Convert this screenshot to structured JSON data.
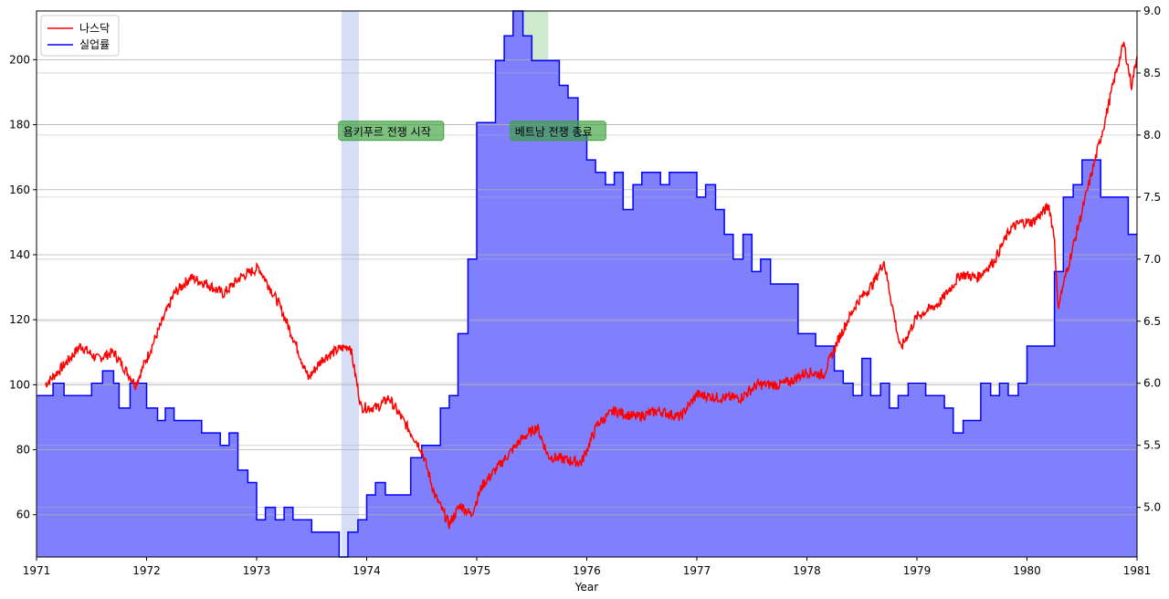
{
  "chart_data": {
    "type": "line",
    "xlabel": "Year",
    "xlim": [
      1971.0,
      1981.0
    ],
    "x_ticks": [
      "1971",
      "1972",
      "1973",
      "1974",
      "1975",
      "1976",
      "1977",
      "1978",
      "1979",
      "1980",
      "1981"
    ],
    "y_left": {
      "range": [
        47,
        215
      ],
      "ticks": [
        "60",
        "80",
        "100",
        "120",
        "140",
        "160",
        "180",
        "200"
      ]
    },
    "y_right": {
      "range": [
        4.6,
        9.0
      ],
      "ticks": [
        "5.0",
        "5.5",
        "6.0",
        "6.5",
        "7.0",
        "7.5",
        "8.0",
        "8.5",
        "9.0"
      ]
    },
    "grid": "horizontal",
    "legend_position": "top-left",
    "series": [
      {
        "name": "나스닥",
        "color": "#ff0000",
        "axis": "left",
        "style": "line",
        "points": [
          [
            1971.08,
            100
          ],
          [
            1971.25,
            106
          ],
          [
            1971.4,
            112
          ],
          [
            1971.55,
            108
          ],
          [
            1971.7,
            110
          ],
          [
            1971.9,
            100
          ],
          [
            1972.05,
            112
          ],
          [
            1972.25,
            128
          ],
          [
            1972.4,
            133
          ],
          [
            1972.55,
            131
          ],
          [
            1972.7,
            128
          ],
          [
            1972.85,
            133
          ],
          [
            1973.02,
            136
          ],
          [
            1973.2,
            125
          ],
          [
            1973.35,
            113
          ],
          [
            1973.47,
            102
          ],
          [
            1973.6,
            108
          ],
          [
            1973.75,
            111
          ],
          [
            1973.85,
            112
          ],
          [
            1973.95,
            93
          ],
          [
            1974.1,
            93
          ],
          [
            1974.2,
            96
          ],
          [
            1974.35,
            88
          ],
          [
            1974.5,
            80
          ],
          [
            1974.62,
            66
          ],
          [
            1974.75,
            57
          ],
          [
            1974.85,
            63
          ],
          [
            1974.95,
            60
          ],
          [
            1975.05,
            69
          ],
          [
            1975.2,
            75
          ],
          [
            1975.4,
            83
          ],
          [
            1975.55,
            87
          ],
          [
            1975.65,
            78
          ],
          [
            1975.8,
            77
          ],
          [
            1975.95,
            76
          ],
          [
            1976.1,
            88
          ],
          [
            1976.25,
            92
          ],
          [
            1976.45,
            90
          ],
          [
            1976.65,
            92
          ],
          [
            1976.85,
            90
          ],
          [
            1977.0,
            97
          ],
          [
            1977.2,
            96
          ],
          [
            1977.4,
            96
          ],
          [
            1977.55,
            100
          ],
          [
            1977.75,
            100
          ],
          [
            1977.85,
            101
          ],
          [
            1978.0,
            104
          ],
          [
            1978.15,
            103
          ],
          [
            1978.3,
            115
          ],
          [
            1978.45,
            125
          ],
          [
            1978.6,
            131
          ],
          [
            1978.7,
            138
          ],
          [
            1978.85,
            111
          ],
          [
            1979.0,
            121
          ],
          [
            1979.2,
            125
          ],
          [
            1979.4,
            134
          ],
          [
            1979.55,
            133
          ],
          [
            1979.7,
            138
          ],
          [
            1979.85,
            148
          ],
          [
            1979.95,
            150
          ],
          [
            1980.05,
            150
          ],
          [
            1980.2,
            155
          ],
          [
            1980.25,
            145
          ],
          [
            1980.28,
            124
          ],
          [
            1980.4,
            140
          ],
          [
            1980.55,
            160
          ],
          [
            1980.7,
            180
          ],
          [
            1980.8,
            195
          ],
          [
            1980.88,
            205
          ],
          [
            1980.95,
            192
          ],
          [
            1981.0,
            201
          ]
        ]
      },
      {
        "name": "실업률",
        "color": "#0000ff",
        "fill": "#8080ff",
        "axis": "right",
        "style": "step",
        "points": [
          [
            1971.0,
            5.9
          ],
          [
            1971.15,
            6.0
          ],
          [
            1971.25,
            5.9
          ],
          [
            1971.5,
            6.0
          ],
          [
            1971.6,
            6.1
          ],
          [
            1971.7,
            6.0
          ],
          [
            1971.75,
            5.8
          ],
          [
            1971.85,
            6.0
          ],
          [
            1972.0,
            5.8
          ],
          [
            1972.1,
            5.7
          ],
          [
            1972.17,
            5.8
          ],
          [
            1972.25,
            5.7
          ],
          [
            1972.5,
            5.6
          ],
          [
            1972.67,
            5.5
          ],
          [
            1972.75,
            5.6
          ],
          [
            1972.83,
            5.3
          ],
          [
            1972.92,
            5.2
          ],
          [
            1973.0,
            4.9
          ],
          [
            1973.08,
            5.0
          ],
          [
            1973.17,
            4.9
          ],
          [
            1973.25,
            5.0
          ],
          [
            1973.33,
            4.9
          ],
          [
            1973.5,
            4.8
          ],
          [
            1973.75,
            4.6
          ],
          [
            1973.83,
            4.8
          ],
          [
            1973.92,
            4.9
          ],
          [
            1974.0,
            5.1
          ],
          [
            1974.08,
            5.2
          ],
          [
            1974.17,
            5.1
          ],
          [
            1974.4,
            5.4
          ],
          [
            1974.5,
            5.5
          ],
          [
            1974.67,
            5.8
          ],
          [
            1974.75,
            5.9
          ],
          [
            1974.83,
            6.4
          ],
          [
            1974.92,
            7.0
          ],
          [
            1975.0,
            8.1
          ],
          [
            1975.17,
            8.6
          ],
          [
            1975.25,
            8.8
          ],
          [
            1975.33,
            9.0
          ],
          [
            1975.42,
            8.8
          ],
          [
            1975.5,
            8.6
          ],
          [
            1975.75,
            8.4
          ],
          [
            1975.83,
            8.3
          ],
          [
            1975.92,
            8.0
          ],
          [
            1976.0,
            7.8
          ],
          [
            1976.08,
            7.7
          ],
          [
            1976.17,
            7.6
          ],
          [
            1976.25,
            7.7
          ],
          [
            1976.33,
            7.4
          ],
          [
            1976.42,
            7.6
          ],
          [
            1976.5,
            7.7
          ],
          [
            1976.67,
            7.6
          ],
          [
            1976.75,
            7.7
          ],
          [
            1977.0,
            7.5
          ],
          [
            1977.08,
            7.6
          ],
          [
            1977.17,
            7.4
          ],
          [
            1977.25,
            7.2
          ],
          [
            1977.33,
            7.0
          ],
          [
            1977.42,
            7.2
          ],
          [
            1977.5,
            6.9
          ],
          [
            1977.58,
            7.0
          ],
          [
            1977.67,
            6.8
          ],
          [
            1977.92,
            6.4
          ],
          [
            1978.08,
            6.3
          ],
          [
            1978.25,
            6.1
          ],
          [
            1978.33,
            6.0
          ],
          [
            1978.42,
            5.9
          ],
          [
            1978.5,
            6.2
          ],
          [
            1978.58,
            5.9
          ],
          [
            1978.67,
            6.0
          ],
          [
            1978.75,
            5.8
          ],
          [
            1978.83,
            5.9
          ],
          [
            1978.92,
            6.0
          ],
          [
            1979.08,
            5.9
          ],
          [
            1979.25,
            5.8
          ],
          [
            1979.33,
            5.6
          ],
          [
            1979.42,
            5.7
          ],
          [
            1979.58,
            6.0
          ],
          [
            1979.67,
            5.9
          ],
          [
            1979.75,
            6.0
          ],
          [
            1979.83,
            5.9
          ],
          [
            1979.92,
            6.0
          ],
          [
            1980.0,
            6.3
          ],
          [
            1980.25,
            6.9
          ],
          [
            1980.33,
            7.5
          ],
          [
            1980.42,
            7.6
          ],
          [
            1980.5,
            7.8
          ],
          [
            1980.67,
            7.5
          ],
          [
            1980.92,
            7.2
          ],
          [
            1981.0,
            7.2
          ]
        ]
      }
    ],
    "shaded_spans": [
      {
        "x_start": 1973.77,
        "x_end": 1973.93,
        "color": "#aebfee",
        "opacity": 0.5
      },
      {
        "x_start": 1975.33,
        "x_end": 1975.65,
        "color": "#5cb85c",
        "opacity": 0.3
      }
    ],
    "annotations": [
      {
        "text": "욤키푸르 전쟁 시작",
        "x": 1973.77,
        "y_left": 178
      },
      {
        "text": "베트남 전쟁 종료",
        "x": 1975.33,
        "y_left": 178
      }
    ],
    "annotation_box_color": "#3aa23a"
  }
}
